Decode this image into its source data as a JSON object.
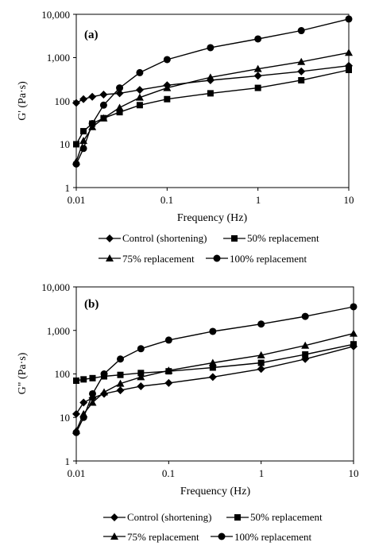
{
  "chart_data": [
    {
      "type": "line",
      "panel_label": "(a)",
      "ylabel": "G' (Pa·s)",
      "xlabel": "Frequency (Hz)",
      "x_scale": "log",
      "y_scale": "log",
      "xlim": [
        0.01,
        10
      ],
      "ylim": [
        1,
        10000
      ],
      "x_ticks": [
        "0.01",
        "0.1",
        "1",
        "10"
      ],
      "y_ticks": [
        "1",
        "10",
        "100",
        "1,000",
        "10,000"
      ],
      "grid": false,
      "legend_position": "bottom",
      "series": [
        {
          "name": "Control (shortening)",
          "marker": "diamond",
          "x": [
            0.01,
            0.012,
            0.015,
            0.02,
            0.03,
            0.05,
            0.1,
            0.3,
            1,
            3,
            10
          ],
          "y": [
            90,
            110,
            125,
            140,
            150,
            180,
            230,
            300,
            380,
            480,
            650
          ]
        },
        {
          "name": "50% replacement",
          "marker": "square",
          "x": [
            0.01,
            0.012,
            0.015,
            0.02,
            0.03,
            0.05,
            0.1,
            0.3,
            1,
            3,
            10
          ],
          "y": [
            10,
            20,
            30,
            40,
            55,
            80,
            110,
            150,
            200,
            300,
            520
          ]
        },
        {
          "name": "75% replacement",
          "marker": "triangle",
          "x": [
            0.01,
            0.012,
            0.015,
            0.02,
            0.03,
            0.05,
            0.1,
            0.3,
            1,
            3,
            10
          ],
          "y": [
            4,
            12,
            25,
            40,
            70,
            120,
            200,
            350,
            550,
            800,
            1300
          ]
        },
        {
          "name": "100% replacement",
          "marker": "circle",
          "x": [
            0.01,
            0.012,
            0.015,
            0.02,
            0.03,
            0.05,
            0.1,
            0.3,
            1,
            3,
            10
          ],
          "y": [
            3.5,
            8,
            30,
            80,
            200,
            450,
            900,
            1700,
            2700,
            4200,
            7800
          ]
        }
      ]
    },
    {
      "type": "line",
      "panel_label": "(b)",
      "ylabel": "G\" (Pa·s)",
      "xlabel": "Frequency (Hz)",
      "x_scale": "log",
      "y_scale": "log",
      "xlim": [
        0.01,
        10
      ],
      "ylim": [
        1,
        10000
      ],
      "x_ticks": [
        "0.01",
        "0.1",
        "1",
        "10"
      ],
      "y_ticks": [
        "1",
        "10",
        "100",
        "1,000",
        "10,000"
      ],
      "grid": false,
      "legend_position": "bottom",
      "series": [
        {
          "name": "Control (shortening)",
          "marker": "diamond",
          "x": [
            0.01,
            0.012,
            0.015,
            0.02,
            0.03,
            0.05,
            0.1,
            0.3,
            1,
            3,
            10
          ],
          "y": [
            12,
            22,
            28,
            35,
            42,
            52,
            62,
            85,
            130,
            220,
            430
          ]
        },
        {
          "name": "50% replacement",
          "marker": "square",
          "x": [
            0.01,
            0.012,
            0.015,
            0.02,
            0.03,
            0.05,
            0.1,
            0.3,
            1,
            3,
            10
          ],
          "y": [
            70,
            75,
            80,
            88,
            95,
            105,
            115,
            140,
            180,
            280,
            480
          ]
        },
        {
          "name": "75% replacement",
          "marker": "triangle",
          "x": [
            0.01,
            0.012,
            0.015,
            0.02,
            0.03,
            0.05,
            0.1,
            0.3,
            1,
            3,
            10
          ],
          "y": [
            5,
            12,
            22,
            38,
            60,
            85,
            120,
            180,
            270,
            450,
            850
          ]
        },
        {
          "name": "100% replacement",
          "marker": "circle",
          "x": [
            0.01,
            0.012,
            0.015,
            0.02,
            0.03,
            0.05,
            0.1,
            0.3,
            1,
            3,
            10
          ],
          "y": [
            4.5,
            10,
            35,
            100,
            220,
            380,
            600,
            950,
            1400,
            2100,
            3500
          ]
        }
      ]
    }
  ]
}
